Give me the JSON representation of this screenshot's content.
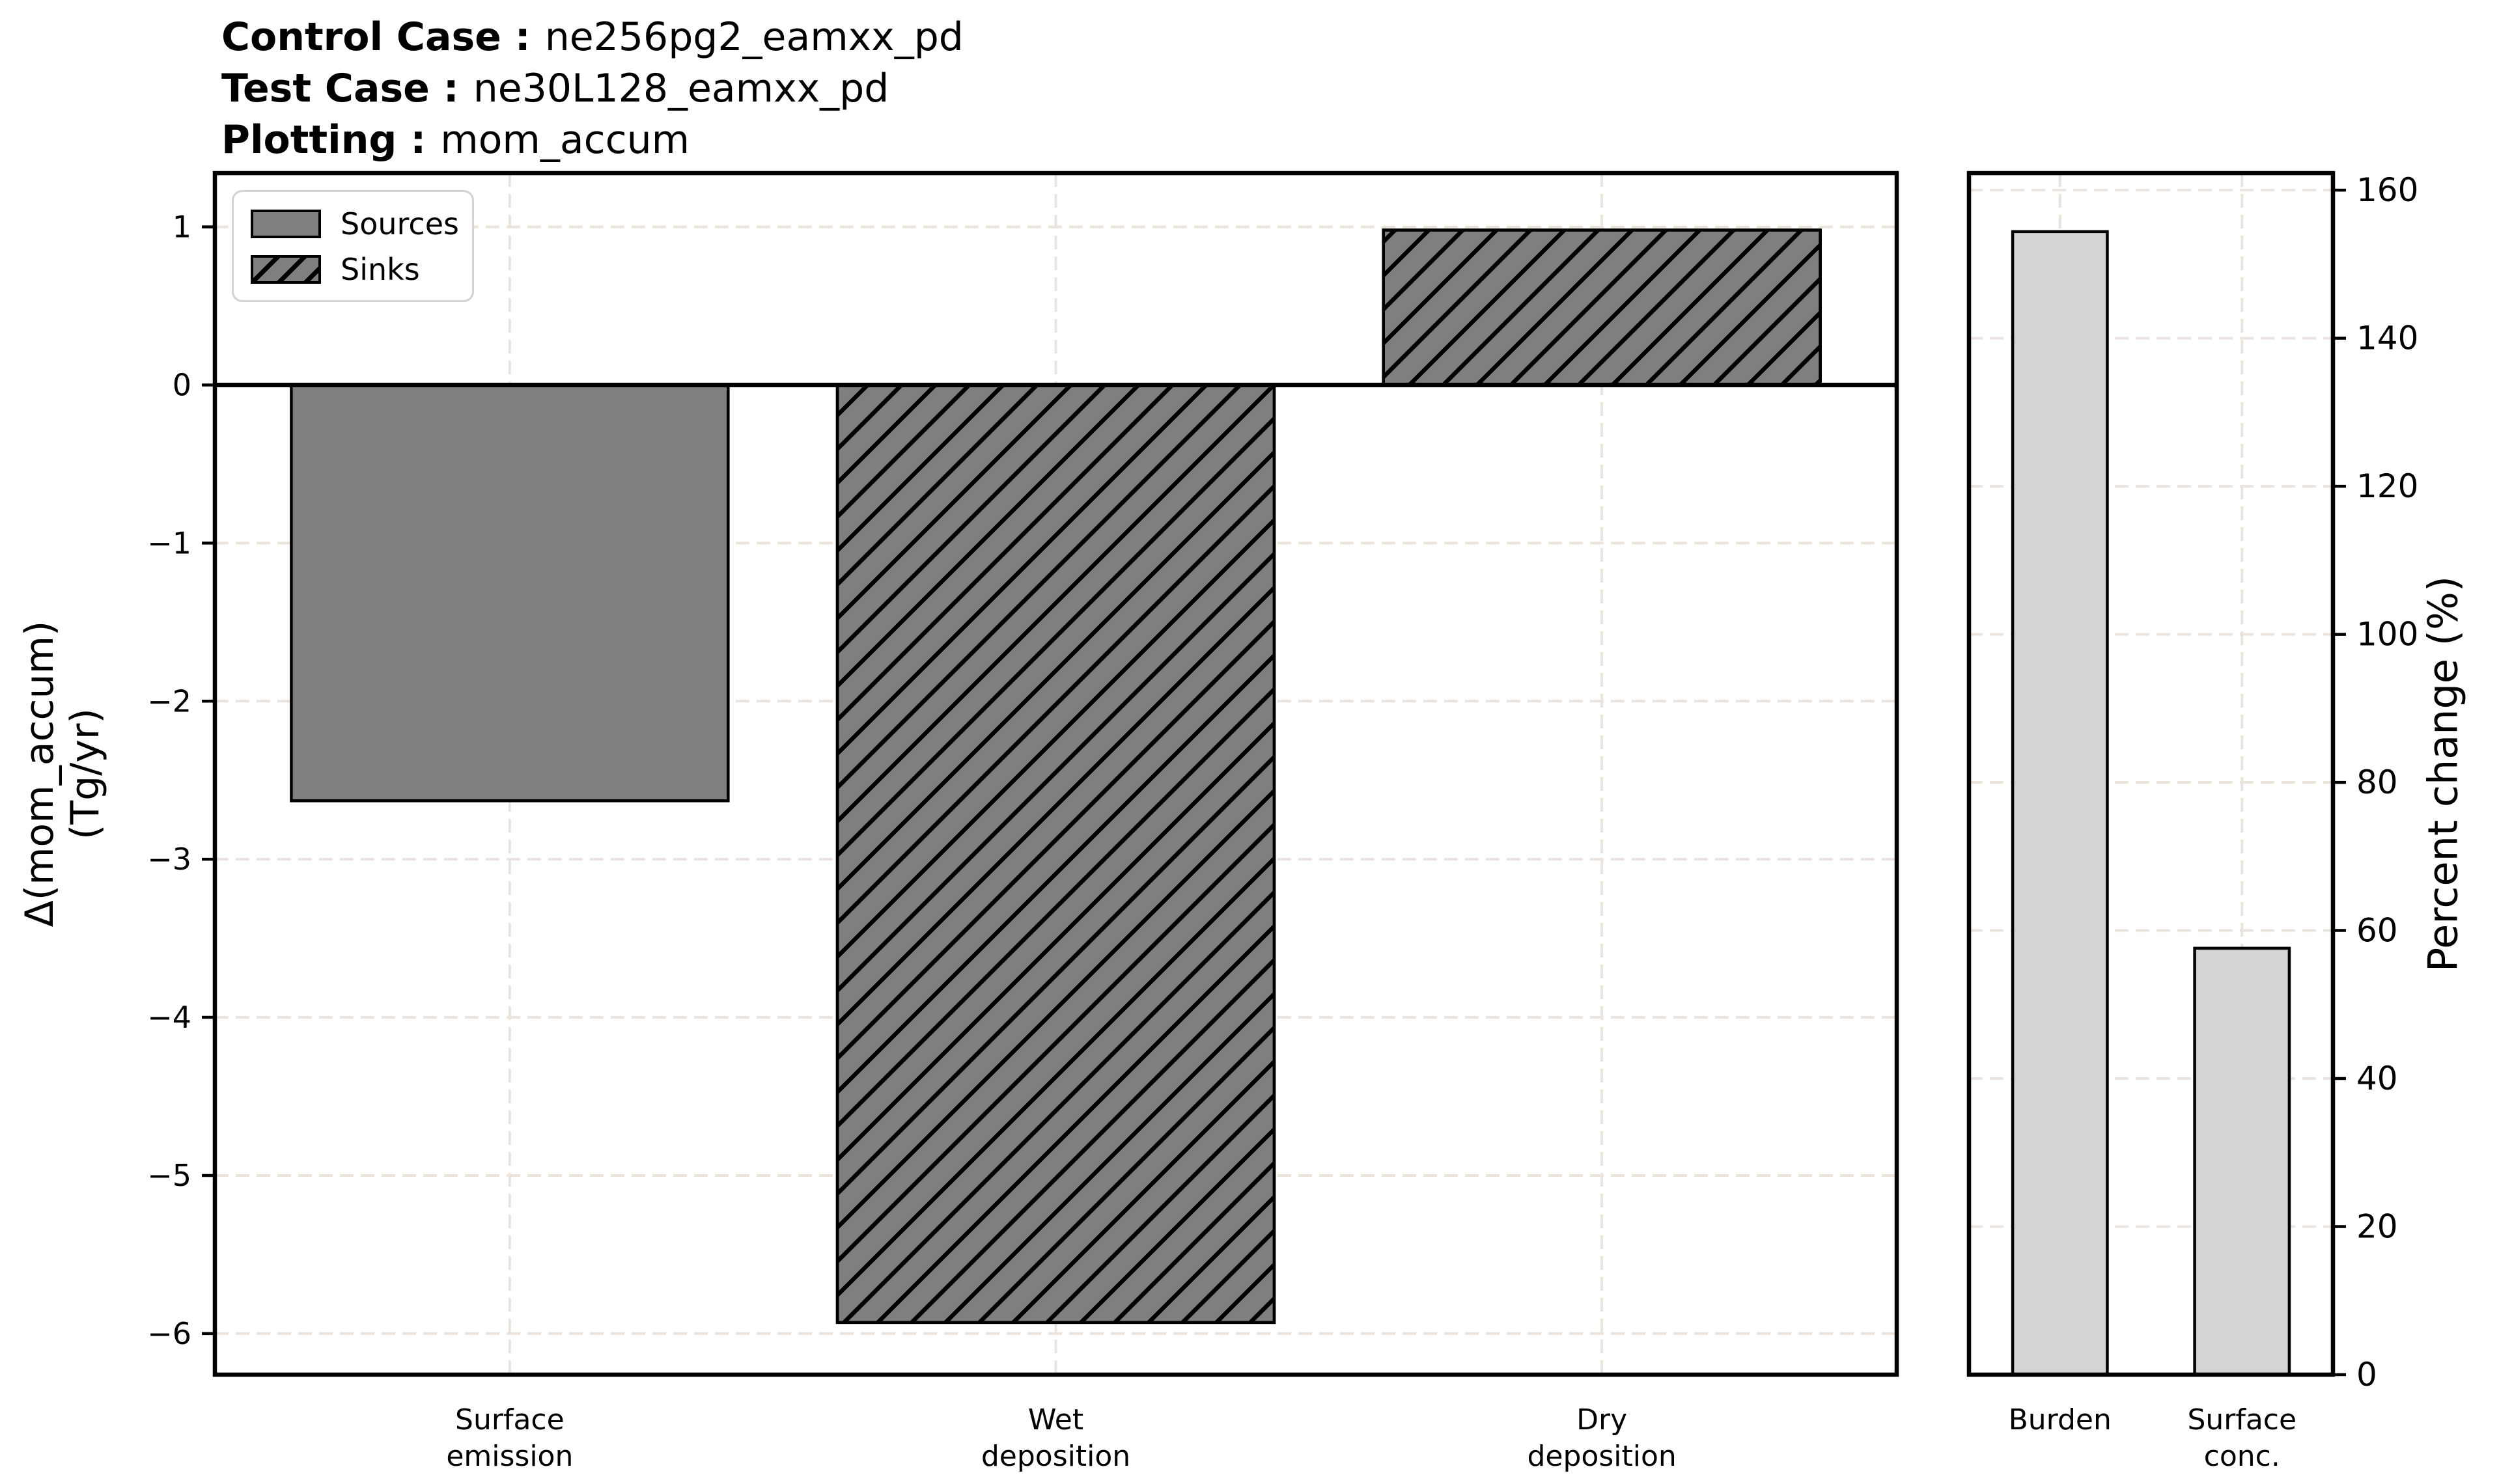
{
  "header": {
    "control_label": "Control Case :",
    "control_value": "ne256pg2_eamxx_pd",
    "test_label": "Test Case :",
    "test_value": "ne30L128_eamxx_pd",
    "plotting_label": "Plotting :",
    "plotting_value": "mom_accum"
  },
  "legend": {
    "items": [
      {
        "label": "Sources",
        "hatched": false
      },
      {
        "label": "Sinks",
        "hatched": true
      }
    ]
  },
  "colors": {
    "bar_gray": "#7f7f7f",
    "bar_lightgray": "#d4d4d4",
    "edge": "#000000",
    "grid": "#eae4dc",
    "legend_frame": "#d2d2d2"
  },
  "chart_data": [
    {
      "type": "bar",
      "panel": "left",
      "categories": [
        "Surface emission",
        "Wet deposition",
        "Dry deposition"
      ],
      "category_lines": [
        [
          "Surface",
          "emission"
        ],
        [
          "Wet",
          "deposition"
        ],
        [
          "Dry",
          "deposition"
        ]
      ],
      "values": [
        -2.63,
        -5.93,
        0.98
      ],
      "groups": [
        "Sources",
        "Sinks",
        "Sinks"
      ],
      "hatched": [
        false,
        true,
        true
      ],
      "bar_color": "#7f7f7f",
      "bar_width": 0.8,
      "xlim": [
        -0.54,
        2.54
      ],
      "ylim": [
        -6.26,
        1.34
      ],
      "yticks": [
        1,
        0,
        -1,
        -2,
        -3,
        -4,
        -5,
        -6
      ],
      "ylabel": "Δ(mom_accum) (Tg/yr)",
      "ylabel_lines": [
        "Δ(mom_accum)",
        "(Tg/yr)"
      ],
      "grid": true,
      "zero_line": true,
      "legend_position": "upper left",
      "yaxis_side": "left"
    },
    {
      "type": "bar",
      "panel": "right",
      "categories": [
        "Burden",
        "Surface conc."
      ],
      "category_lines": [
        [
          "Burden"
        ],
        [
          "Surface",
          "conc."
        ]
      ],
      "values": [
        154.4,
        57.6
      ],
      "hatched": [
        false,
        false
      ],
      "bar_color": "#d4d4d4",
      "bar_width": 0.52,
      "xlim": [
        -0.5,
        1.5
      ],
      "ylim": [
        0,
        162.3
      ],
      "yticks": [
        0,
        20,
        40,
        60,
        80,
        100,
        120,
        140,
        160
      ],
      "ylabel": "Percent change (%)",
      "grid": true,
      "zero_line": false,
      "yaxis_side": "right"
    }
  ]
}
